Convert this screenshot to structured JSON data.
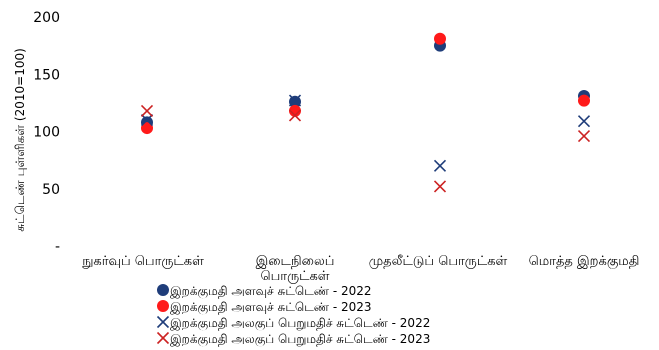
{
  "chart_data": {
    "type": "scatter",
    "ylabel": "சுட்டெண் புள்ளிகள் (2010=100)",
    "ylim": [
      0,
      200
    ],
    "y_ticks": [
      {
        "value": 0,
        "label": "-"
      },
      {
        "value": 50,
        "label": "50"
      },
      {
        "value": 100,
        "label": "100"
      },
      {
        "value": 150,
        "label": "150"
      },
      {
        "value": 200,
        "label": "200"
      }
    ],
    "grid": false,
    "legend_position": "bottom",
    "categories": [
      {
        "lines": [
          "நுகர்வுப் பொருட்கள்"
        ]
      },
      {
        "lines": [
          "இடைநிலைப்",
          "பொருட்கள்"
        ]
      },
      {
        "lines": [
          "முதலீட்டுப் பொருட்கள்"
        ]
      },
      {
        "lines": [
          "மொத்த இறக்குமதி"
        ]
      }
    ],
    "series": [
      {
        "name": "இறக்குமதி அளவுச் சுட்டெண் - 2022",
        "marker": "circle",
        "color": "#1f3d7a",
        "values": [
          108,
          126,
          175,
          131
        ]
      },
      {
        "name": "இறக்குமதி அளவுச் சுட்டெண் - 2023",
        "marker": "circle",
        "color": "#ff1a1a",
        "values": [
          103,
          118,
          181,
          127
        ]
      },
      {
        "name": "இறக்குமதி அலகுப் பெறுமதிச் சுட்டெண் - 2022",
        "marker": "x",
        "color": "#1f3d7a",
        "values": [
          110,
          127,
          70,
          109
        ]
      },
      {
        "name": "இறக்குமதி அலகுப் பெறுமதிச் சுட்டெண் - 2023",
        "marker": "x",
        "color": "#cc2222",
        "values": [
          118,
          114,
          52,
          96
        ]
      }
    ]
  }
}
